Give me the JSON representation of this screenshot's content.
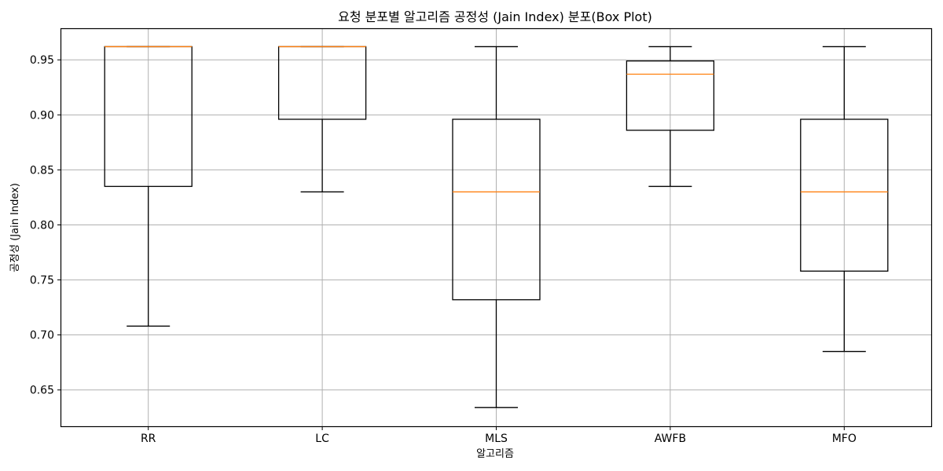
{
  "chart_data": {
    "type": "boxplot",
    "title": "요청 분포별 알고리즘 공정성 (Jain Index) 분포(Box Plot)",
    "xlabel": "알고리즘",
    "ylabel": "공정성 (Jain Index)",
    "ylim": [
      0.617,
      0.978
    ],
    "yticks": [
      0.65,
      0.7,
      0.75,
      0.8,
      0.85,
      0.9,
      0.95
    ],
    "ytick_labels": [
      "0.65",
      "0.70",
      "0.75",
      "0.80",
      "0.85",
      "0.90",
      "0.95"
    ],
    "grid": true,
    "median_color": "#ff7f0e",
    "categories": [
      "RR",
      "LC",
      "MLS",
      "AWFB",
      "MFO"
    ],
    "boxes": [
      {
        "name": "RR",
        "whisker_low": 0.708,
        "q1": 0.835,
        "median": 0.962,
        "q3": 0.962,
        "whisker_high": 0.962
      },
      {
        "name": "LC",
        "whisker_low": 0.83,
        "q1": 0.896,
        "median": 0.962,
        "q3": 0.962,
        "whisker_high": 0.962
      },
      {
        "name": "MLS",
        "whisker_low": 0.634,
        "q1": 0.732,
        "median": 0.83,
        "q3": 0.896,
        "whisker_high": 0.962
      },
      {
        "name": "AWFB",
        "whisker_low": 0.835,
        "q1": 0.886,
        "median": 0.937,
        "q3": 0.949,
        "whisker_high": 0.962
      },
      {
        "name": "MFO",
        "whisker_low": 0.685,
        "q1": 0.758,
        "median": 0.83,
        "q3": 0.896,
        "whisker_high": 0.962
      }
    ]
  }
}
